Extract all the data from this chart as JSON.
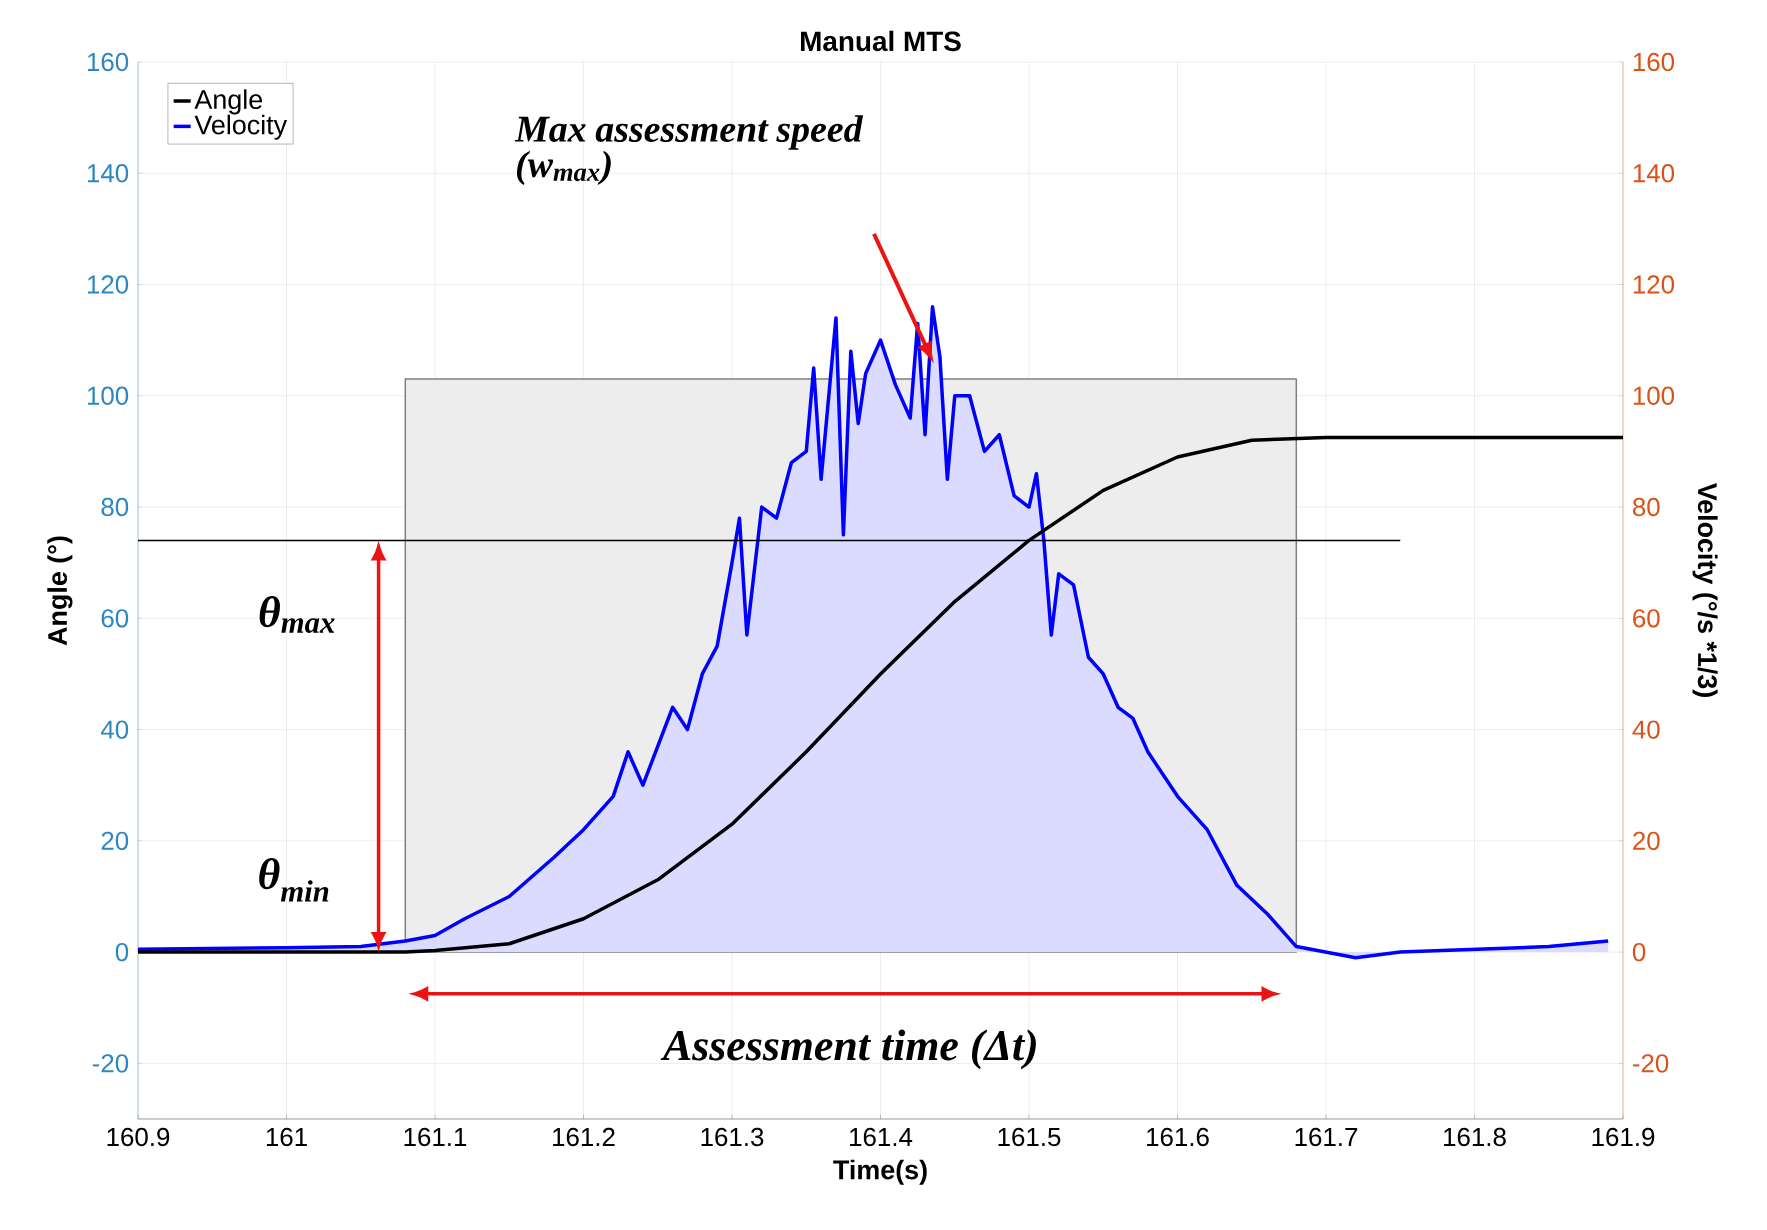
{
  "chart_data": {
    "type": "line",
    "title": "Manual MTS",
    "xlabel": "Time(s)",
    "ylabel": "Angle (°)",
    "y2label": "Velocity (°/s *1/3)",
    "xlim": [
      160.9,
      161.9
    ],
    "xticks": [
      160.9,
      161,
      161.1,
      161.2,
      161.3,
      161.4,
      161.5,
      161.6,
      161.7,
      161.8,
      161.9
    ],
    "ylim": [
      -30,
      160
    ],
    "yticks": [
      -20,
      0,
      20,
      40,
      60,
      80,
      100,
      120,
      140,
      160
    ],
    "y2lim": [
      -30,
      160
    ],
    "y2ticks": [
      -20,
      0,
      20,
      40,
      60,
      80,
      100,
      120,
      140,
      160
    ],
    "grid": true,
    "legend": "top left",
    "series": [
      {
        "name": "Angle",
        "color": "#000000",
        "x": [
          160.9,
          161.0,
          161.08,
          161.1,
          161.15,
          161.2,
          161.25,
          161.3,
          161.35,
          161.4,
          161.45,
          161.5,
          161.55,
          161.6,
          161.65,
          161.7,
          161.8,
          161.9
        ],
        "values": [
          0,
          0,
          0,
          0.3,
          1.5,
          6,
          13,
          23,
          36,
          50,
          63,
          74,
          83,
          89,
          92,
          92.5,
          92.5,
          92.5
        ]
      },
      {
        "name": "Velocity",
        "type": "area",
        "axis": "y2",
        "color": "#0000ff",
        "x": [
          160.9,
          161.0,
          161.05,
          161.08,
          161.1,
          161.12,
          161.15,
          161.18,
          161.2,
          161.22,
          161.23,
          161.24,
          161.26,
          161.27,
          161.28,
          161.29,
          161.3,
          161.305,
          161.31,
          161.32,
          161.33,
          161.34,
          161.35,
          161.355,
          161.36,
          161.37,
          161.375,
          161.38,
          161.385,
          161.39,
          161.4,
          161.41,
          161.42,
          161.425,
          161.43,
          161.435,
          161.44,
          161.445,
          161.45,
          161.46,
          161.47,
          161.48,
          161.49,
          161.5,
          161.505,
          161.51,
          161.515,
          161.52,
          161.53,
          161.54,
          161.55,
          161.56,
          161.57,
          161.58,
          161.6,
          161.62,
          161.64,
          161.66,
          161.68,
          161.7,
          161.72,
          161.75,
          161.8,
          161.85,
          161.89
        ],
        "values": [
          0.5,
          0.8,
          1,
          2,
          3,
          6,
          10,
          17,
          22,
          28,
          36,
          30,
          44,
          40,
          50,
          55,
          70,
          78,
          57,
          80,
          78,
          88,
          90,
          105,
          85,
          114,
          75,
          108,
          95,
          104,
          110,
          102,
          96,
          113,
          93,
          116,
          107,
          85,
          100,
          100,
          90,
          93,
          82,
          80,
          86,
          74,
          57,
          68,
          66,
          53,
          50,
          44,
          42,
          36,
          28,
          22,
          12,
          7,
          1,
          0,
          -1,
          0,
          0.5,
          1,
          2
        ]
      },
      {
        "type": "area",
        "color": "#808080",
        "x": [
          161.08,
          161.68
        ],
        "values": [
          103,
          103
        ]
      },
      {
        "type": "line",
        "color": "#000000",
        "x": [
          160.9,
          161.75
        ],
        "values": [
          74,
          74
        ]
      }
    ],
    "annotations": [
      "Max assessment speed (w$_{max}$)",
      "θ$_{max}$",
      "θ$_{min}$",
      "Assessment time (Δt)"
    ]
  }
}
